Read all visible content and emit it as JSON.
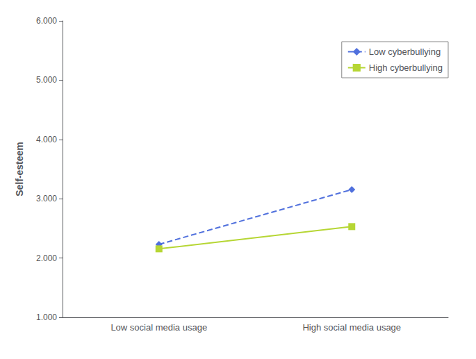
{
  "chart_data": {
    "type": "line",
    "categories": [
      "Low social media usage",
      "High social media usage"
    ],
    "series": [
      {
        "name": "Low cyberbullying",
        "values": [
          2.23,
          3.155
        ],
        "marker": "diamond",
        "line_style": "dashed"
      },
      {
        "name": "High cyberbullying",
        "values": [
          2.155,
          2.53
        ],
        "marker": "square",
        "line_style": "solid"
      }
    ],
    "ylabel": "Self-esteem",
    "ylim": [
      1.0,
      6.0
    ],
    "yticks": [
      {
        "value": 1,
        "label": "1.000"
      },
      {
        "value": 2,
        "label": "2.000"
      },
      {
        "value": 3,
        "label": "3.000"
      },
      {
        "value": 4,
        "label": "4.000"
      },
      {
        "value": 5,
        "label": "5.000"
      },
      {
        "value": 6,
        "label": "6.000"
      }
    ],
    "grid": false,
    "legend": "upper right"
  }
}
